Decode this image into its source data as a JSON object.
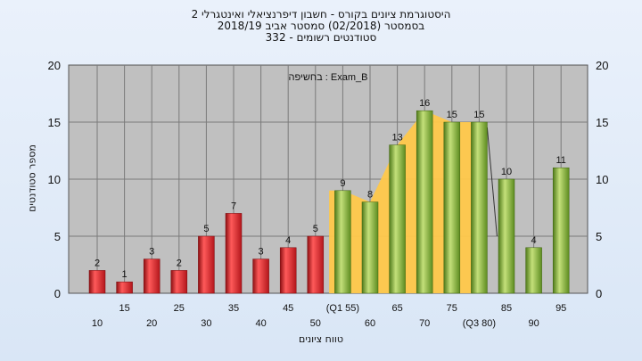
{
  "chart_data": {
    "type": "bar",
    "title": "היסטוגרמת ציונים בקורס - חשבון דיפרנציאלי ואינטגרלי 2",
    "subtitle_lines": [
      "בסמסטר  (02/2018)  סמסטר אביב 2018/19",
      "סטודנטים רשומים - 332"
    ],
    "annotation": "בחשיפה : Exam_B",
    "xlabel": "טווח ציונים",
    "ylabel": "מספר סטודנטים",
    "ylim": [
      0,
      20
    ],
    "yticks": [
      0,
      5,
      10,
      15,
      20
    ],
    "grid": true,
    "categories": [
      "10",
      "15",
      "20",
      "25",
      "30",
      "35",
      "40",
      "45",
      "50",
      "55",
      "60",
      "65",
      "70",
      "75",
      "80",
      "85",
      "90",
      "95"
    ],
    "category_labels": [
      "10",
      "15",
      "20",
      "25",
      "30",
      "35",
      "40",
      "45",
      "50",
      "(Q1 55)",
      "60",
      "65",
      "70",
      "75",
      "(Q3 80)",
      "85",
      "90",
      "95"
    ],
    "values": [
      2,
      1,
      3,
      2,
      5,
      7,
      3,
      4,
      5,
      9,
      8,
      13,
      16,
      15,
      15,
      10,
      4,
      11
    ],
    "fail_threshold": "50",
    "iqr_band": {
      "from": "55",
      "to": "80"
    },
    "colors": {
      "fail_bar": "#e0282e",
      "pass_bar": "#8cbf3c",
      "iqr_fill": "#ffc84a",
      "plot_bg": "#c0c0c0",
      "grid": "#7a7a7a"
    }
  }
}
